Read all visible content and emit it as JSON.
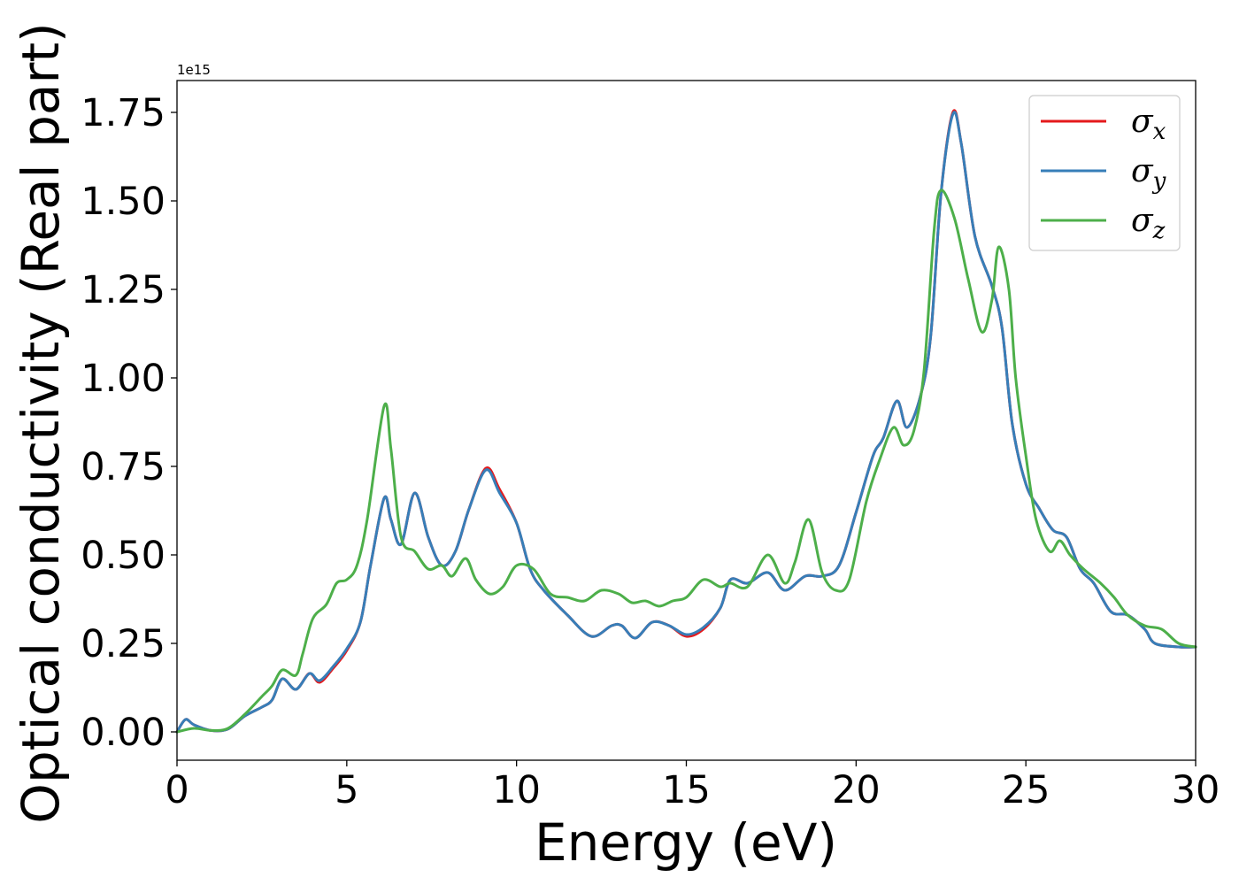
{
  "chart_data": {
    "type": "line",
    "xlabel": "Energy (eV)",
    "ylabel": "Optical conductivity (Real part)",
    "y_offset_label": "1e15",
    "xlim": [
      0,
      30
    ],
    "ylim": [
      -0.08,
      1.84
    ],
    "x_ticks": [
      0,
      5,
      10,
      15,
      20,
      25,
      30
    ],
    "x_tick_labels": [
      "0",
      "5",
      "10",
      "15",
      "20",
      "25",
      "30"
    ],
    "y_ticks": [
      0,
      0.25,
      0.5,
      0.75,
      1.0,
      1.25,
      1.5,
      1.75
    ],
    "y_tick_labels": [
      "0.00",
      "0.25",
      "0.50",
      "0.75",
      "1.00",
      "1.25",
      "1.50",
      "1.75"
    ],
    "grid": false,
    "legend_position": "top-right",
    "series": [
      {
        "name": "σ",
        "subscript": "x",
        "color": "#e41a1c",
        "points": [
          [
            0,
            0
          ],
          [
            0.25,
            0.035
          ],
          [
            0.5,
            0.02
          ],
          [
            1,
            0.004
          ],
          [
            1.5,
            0.008
          ],
          [
            2,
            0.045
          ],
          [
            2.5,
            0.07
          ],
          [
            2.8,
            0.09
          ],
          [
            3.1,
            0.15
          ],
          [
            3.5,
            0.12
          ],
          [
            3.9,
            0.165
          ],
          [
            4.2,
            0.14
          ],
          [
            4.6,
            0.18
          ],
          [
            5,
            0.23
          ],
          [
            5.4,
            0.31
          ],
          [
            5.7,
            0.47
          ],
          [
            6.1,
            0.66
          ],
          [
            6.3,
            0.6
          ],
          [
            6.6,
            0.53
          ],
          [
            7,
            0.675
          ],
          [
            7.4,
            0.55
          ],
          [
            7.8,
            0.47
          ],
          [
            8.2,
            0.51
          ],
          [
            8.6,
            0.63
          ],
          [
            9.1,
            0.745
          ],
          [
            9.5,
            0.685
          ],
          [
            10,
            0.59
          ],
          [
            10.4,
            0.46
          ],
          [
            10.8,
            0.4
          ],
          [
            11.5,
            0.33
          ],
          [
            12.2,
            0.27
          ],
          [
            12.8,
            0.3
          ],
          [
            13.1,
            0.3
          ],
          [
            13.5,
            0.265
          ],
          [
            14,
            0.31
          ],
          [
            14.5,
            0.3
          ],
          [
            15,
            0.27
          ],
          [
            15.5,
            0.29
          ],
          [
            16,
            0.35
          ],
          [
            16.3,
            0.43
          ],
          [
            16.8,
            0.42
          ],
          [
            17.4,
            0.45
          ],
          [
            17.9,
            0.4
          ],
          [
            18.5,
            0.44
          ],
          [
            19,
            0.44
          ],
          [
            19.5,
            0.47
          ],
          [
            20,
            0.62
          ],
          [
            20.5,
            0.78
          ],
          [
            20.8,
            0.83
          ],
          [
            21.2,
            0.935
          ],
          [
            21.5,
            0.86
          ],
          [
            21.9,
            0.95
          ],
          [
            22.2,
            1.12
          ],
          [
            22.5,
            1.52
          ],
          [
            22.85,
            1.75
          ],
          [
            23.1,
            1.66
          ],
          [
            23.5,
            1.4
          ],
          [
            24,
            1.26
          ],
          [
            24.3,
            1.14
          ],
          [
            24.6,
            0.87
          ],
          [
            25,
            0.7
          ],
          [
            25.4,
            0.63
          ],
          [
            25.8,
            0.57
          ],
          [
            26.2,
            0.55
          ],
          [
            26.6,
            0.46
          ],
          [
            27,
            0.42
          ],
          [
            27.5,
            0.34
          ],
          [
            28,
            0.33
          ],
          [
            28.5,
            0.29
          ],
          [
            28.8,
            0.25
          ],
          [
            29.5,
            0.24
          ],
          [
            30,
            0.24
          ]
        ]
      },
      {
        "name": "σ",
        "subscript": "y",
        "color": "#377eb8",
        "points": [
          [
            0,
            0
          ],
          [
            0.25,
            0.035
          ],
          [
            0.5,
            0.02
          ],
          [
            1,
            0.004
          ],
          [
            1.5,
            0.008
          ],
          [
            2,
            0.045
          ],
          [
            2.5,
            0.07
          ],
          [
            2.8,
            0.09
          ],
          [
            3.1,
            0.15
          ],
          [
            3.5,
            0.12
          ],
          [
            3.9,
            0.165
          ],
          [
            4.2,
            0.145
          ],
          [
            4.6,
            0.185
          ],
          [
            5,
            0.235
          ],
          [
            5.4,
            0.31
          ],
          [
            5.7,
            0.47
          ],
          [
            6.1,
            0.66
          ],
          [
            6.3,
            0.6
          ],
          [
            6.6,
            0.53
          ],
          [
            7,
            0.675
          ],
          [
            7.4,
            0.55
          ],
          [
            7.8,
            0.47
          ],
          [
            8.2,
            0.51
          ],
          [
            8.6,
            0.63
          ],
          [
            9.1,
            0.74
          ],
          [
            9.5,
            0.675
          ],
          [
            10,
            0.59
          ],
          [
            10.4,
            0.46
          ],
          [
            10.8,
            0.4
          ],
          [
            11.5,
            0.33
          ],
          [
            12.2,
            0.27
          ],
          [
            12.8,
            0.3
          ],
          [
            13.1,
            0.3
          ],
          [
            13.5,
            0.265
          ],
          [
            14,
            0.31
          ],
          [
            14.5,
            0.3
          ],
          [
            15,
            0.275
          ],
          [
            15.5,
            0.295
          ],
          [
            16,
            0.35
          ],
          [
            16.3,
            0.43
          ],
          [
            16.8,
            0.42
          ],
          [
            17.4,
            0.45
          ],
          [
            17.9,
            0.4
          ],
          [
            18.5,
            0.44
          ],
          [
            19,
            0.44
          ],
          [
            19.5,
            0.47
          ],
          [
            20,
            0.62
          ],
          [
            20.5,
            0.78
          ],
          [
            20.8,
            0.83
          ],
          [
            21.2,
            0.935
          ],
          [
            21.5,
            0.86
          ],
          [
            21.9,
            0.95
          ],
          [
            22.2,
            1.12
          ],
          [
            22.5,
            1.52
          ],
          [
            22.85,
            1.745
          ],
          [
            23.1,
            1.66
          ],
          [
            23.5,
            1.4
          ],
          [
            24,
            1.26
          ],
          [
            24.3,
            1.14
          ],
          [
            24.6,
            0.87
          ],
          [
            25,
            0.7
          ],
          [
            25.4,
            0.63
          ],
          [
            25.8,
            0.57
          ],
          [
            26.2,
            0.55
          ],
          [
            26.6,
            0.46
          ],
          [
            27,
            0.42
          ],
          [
            27.5,
            0.34
          ],
          [
            28,
            0.33
          ],
          [
            28.5,
            0.29
          ],
          [
            28.8,
            0.25
          ],
          [
            29.5,
            0.24
          ],
          [
            30,
            0.24
          ]
        ]
      },
      {
        "name": "σ",
        "subscript": "z",
        "color": "#4daf4a",
        "points": [
          [
            0,
            0
          ],
          [
            0.5,
            0.01
          ],
          [
            1,
            0.004
          ],
          [
            1.5,
            0.01
          ],
          [
            2,
            0.05
          ],
          [
            2.5,
            0.1
          ],
          [
            2.8,
            0.13
          ],
          [
            3.1,
            0.175
          ],
          [
            3.5,
            0.16
          ],
          [
            3.7,
            0.22
          ],
          [
            4,
            0.32
          ],
          [
            4.4,
            0.36
          ],
          [
            4.7,
            0.42
          ],
          [
            5,
            0.43
          ],
          [
            5.3,
            0.47
          ],
          [
            5.6,
            0.6
          ],
          [
            6.1,
            0.92
          ],
          [
            6.3,
            0.8
          ],
          [
            6.6,
            0.55
          ],
          [
            7,
            0.51
          ],
          [
            7.4,
            0.46
          ],
          [
            7.8,
            0.47
          ],
          [
            8.1,
            0.44
          ],
          [
            8.5,
            0.49
          ],
          [
            8.8,
            0.43
          ],
          [
            9.2,
            0.39
          ],
          [
            9.6,
            0.41
          ],
          [
            10,
            0.47
          ],
          [
            10.5,
            0.46
          ],
          [
            11,
            0.39
          ],
          [
            11.5,
            0.38
          ],
          [
            12,
            0.37
          ],
          [
            12.5,
            0.4
          ],
          [
            13,
            0.39
          ],
          [
            13.4,
            0.365
          ],
          [
            13.8,
            0.37
          ],
          [
            14.2,
            0.355
          ],
          [
            14.6,
            0.37
          ],
          [
            15,
            0.38
          ],
          [
            15.5,
            0.43
          ],
          [
            16,
            0.41
          ],
          [
            16.3,
            0.42
          ],
          [
            16.8,
            0.41
          ],
          [
            17.4,
            0.5
          ],
          [
            17.9,
            0.42
          ],
          [
            18.2,
            0.48
          ],
          [
            18.6,
            0.6
          ],
          [
            19,
            0.45
          ],
          [
            19.4,
            0.4
          ],
          [
            19.8,
            0.43
          ],
          [
            20.3,
            0.65
          ],
          [
            20.7,
            0.77
          ],
          [
            21.1,
            0.86
          ],
          [
            21.4,
            0.81
          ],
          [
            21.7,
            0.85
          ],
          [
            22,
            1.02
          ],
          [
            22.3,
            1.42
          ],
          [
            22.5,
            1.53
          ],
          [
            22.9,
            1.45
          ],
          [
            23.3,
            1.28
          ],
          [
            23.7,
            1.13
          ],
          [
            24,
            1.22
          ],
          [
            24.2,
            1.37
          ],
          [
            24.5,
            1.25
          ],
          [
            24.7,
            1.0
          ],
          [
            25,
            0.78
          ],
          [
            25.3,
            0.6
          ],
          [
            25.7,
            0.51
          ],
          [
            26,
            0.54
          ],
          [
            26.3,
            0.5
          ],
          [
            26.7,
            0.46
          ],
          [
            27.2,
            0.42
          ],
          [
            27.6,
            0.38
          ],
          [
            28,
            0.33
          ],
          [
            28.5,
            0.3
          ],
          [
            29,
            0.29
          ],
          [
            29.5,
            0.25
          ],
          [
            30,
            0.24
          ]
        ]
      }
    ]
  }
}
